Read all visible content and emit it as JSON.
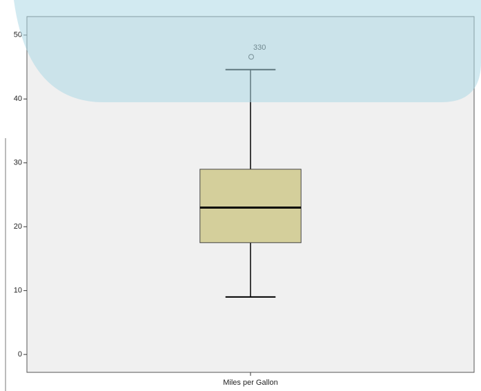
{
  "chart_data": {
    "type": "box",
    "categories": [
      "Miles per Gallon"
    ],
    "boxes": [
      {
        "min": 9,
        "q1": 17.5,
        "median": 23,
        "q3": 29,
        "max": 44.6,
        "outliers": [
          46.6
        ],
        "outlier_labels": [
          "330"
        ]
      }
    ],
    "color": "#d4cf9b",
    "ylim": [
      -2.8,
      52.9
    ],
    "yticks": [
      0,
      10,
      20,
      30,
      40,
      50
    ]
  }
}
